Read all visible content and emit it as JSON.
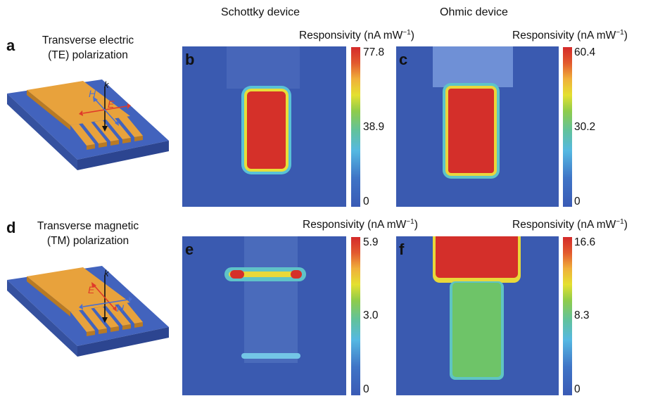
{
  "columns": {
    "schottky": "Schottky device",
    "ohmic": "Ohmic device"
  },
  "panels": {
    "a": {
      "letter": "a",
      "caption_line1": "Transverse electric",
      "caption_line2": "(TE) polarization",
      "vectors": {
        "k": "k",
        "h": "H",
        "e": "E"
      }
    },
    "d": {
      "letter": "d",
      "caption_line1": "Transverse magnetic",
      "caption_line2": "(TM) polarization",
      "vectors": {
        "k": "k",
        "h": "H",
        "e": "E"
      }
    },
    "b": {
      "letter": "b",
      "resp_label": "Responsivity (nA mW",
      "resp_sup": "−1",
      "resp_close": ")",
      "ticks": {
        "max": "77.8",
        "mid": "38.9",
        "min": "0"
      }
    },
    "c": {
      "letter": "c",
      "resp_label": "Responsivity (nA mW",
      "resp_sup": "−1",
      "resp_close": ")",
      "ticks": {
        "max": "60.4",
        "mid": "30.2",
        "min": "0"
      }
    },
    "e": {
      "letter": "e",
      "resp_label": "Responsivity (nA mW",
      "resp_sup": "−1",
      "resp_close": ")",
      "ticks": {
        "max": "5.9",
        "mid": "3.0",
        "min": "0"
      }
    },
    "f": {
      "letter": "f",
      "resp_label": "Responsivity (nA mW",
      "resp_sup": "−1",
      "resp_close": ")",
      "ticks": {
        "max": "16.6",
        "mid": "8.3",
        "min": "0"
      }
    }
  },
  "colors": {
    "substrate": "#3e5fb8",
    "metal": "#e8a23c",
    "map_bg": "#3a5ab0",
    "hot": "#d42f2a",
    "edge": "#e8e03a",
    "e_vector": "#e03a2a",
    "h_vector": "#4a6fd0"
  }
}
